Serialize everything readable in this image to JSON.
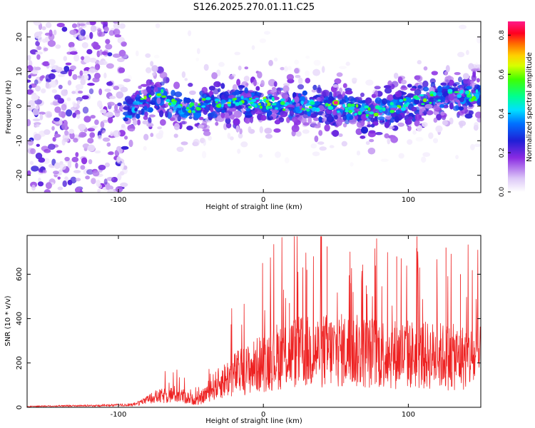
{
  "figure": {
    "title": "S126.2025.270.01.11.C25"
  },
  "chart_data": [
    {
      "type": "heatmap",
      "title": "S126.2025.270.01.11.C25",
      "xlabel": "Height of straight line (km)",
      "ylabel": "Frequency (Hz)",
      "xlim": [
        -163,
        150
      ],
      "ylim": [
        -25,
        24.5
      ],
      "x_ticks": [
        -100,
        0,
        100
      ],
      "x_tick_labels": [
        "-100",
        "0",
        "100"
      ],
      "y_ticks": [
        -20,
        -10,
        0,
        10,
        20
      ],
      "y_tick_labels": [
        "-20",
        "-10",
        "0",
        "10",
        "20"
      ],
      "colorbar": {
        "label": "Normalized spectral amplitude",
        "range": [
          0.0,
          0.87
        ],
        "ticks": [
          0.0,
          0.2,
          0.4,
          0.6,
          0.8
        ],
        "tick_labels": [
          "0.0",
          "0.2",
          "0.4",
          "0.6",
          "0.8"
        ]
      },
      "band_center_hz": [
        {
          "x": -105,
          "y": -12
        },
        {
          "x": -95,
          "y": -3
        },
        {
          "x": -85,
          "y": 1
        },
        {
          "x": -70,
          "y": 3
        },
        {
          "x": -55,
          "y": -2
        },
        {
          "x": -40,
          "y": 1
        },
        {
          "x": -25,
          "y": 1
        },
        {
          "x": 0,
          "y": 1
        },
        {
          "x": 25,
          "y": 0
        },
        {
          "x": 50,
          "y": 0
        },
        {
          "x": 75,
          "y": -2
        },
        {
          "x": 100,
          "y": 1
        },
        {
          "x": 125,
          "y": 3
        },
        {
          "x": 148,
          "y": 3
        }
      ],
      "peak": {
        "x": 50,
        "y": 1,
        "amplitude": 0.87
      }
    },
    {
      "type": "line",
      "xlabel": "Height of straight line (km)",
      "ylabel": "SNR (10 * v/v)",
      "xlim": [
        -163,
        150
      ],
      "ylim": [
        0,
        775
      ],
      "x_ticks": [
        -100,
        0,
        100
      ],
      "x_tick_labels": [
        "-100",
        "0",
        "100"
      ],
      "y_ticks": [
        0,
        200,
        400,
        600
      ],
      "y_tick_labels": [
        "0",
        "200",
        "400",
        "600"
      ],
      "series": [
        {
          "name": "SNR",
          "color": "#ee2222",
          "envelope_x": [
            -163,
            -120,
            -90,
            -75,
            -60,
            -50,
            -45,
            -35,
            -20,
            -10,
            0,
            10,
            20,
            30,
            40,
            50,
            60,
            70,
            80,
            90,
            100,
            110,
            120,
            130,
            140,
            150
          ],
          "envelope_y": [
            6,
            10,
            15,
            60,
            80,
            50,
            40,
            120,
            200,
            230,
            270,
            310,
            330,
            330,
            340,
            340,
            340,
            330,
            330,
            320,
            320,
            310,
            310,
            300,
            300,
            290
          ],
          "spike_max": 770
        }
      ]
    }
  ]
}
